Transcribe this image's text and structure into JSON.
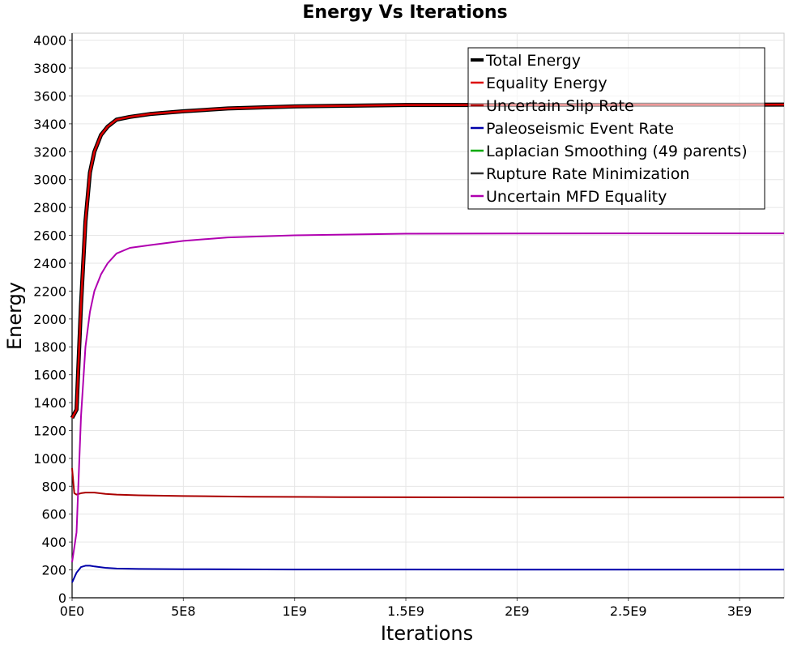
{
  "chart_data": {
    "type": "line",
    "title": "Energy Vs Iterations",
    "xlabel": "Iterations",
    "ylabel": "Energy",
    "xlim": [
      0,
      3200000000
    ],
    "ylim": [
      0,
      4050
    ],
    "x_ticks": [
      0,
      500000000,
      1000000000,
      1500000000,
      2000000000,
      2500000000,
      3000000000
    ],
    "x_tick_labels": [
      "0E0",
      "5E8",
      "1E9",
      "1.5E9",
      "2E9",
      "2.5E9",
      "3E9"
    ],
    "y_ticks": [
      0,
      200,
      400,
      600,
      800,
      1000,
      1200,
      1400,
      1600,
      1800,
      2000,
      2200,
      2400,
      2600,
      2800,
      3000,
      3200,
      3400,
      3600,
      3800,
      4000
    ],
    "grid": true,
    "legend_position": "top-right",
    "series": [
      {
        "name": "Total Energy",
        "color": "#000000",
        "x": [
          0,
          20000000,
          40000000,
          60000000,
          80000000,
          100000000,
          130000000,
          160000000,
          200000000,
          260000000,
          350000000,
          500000000,
          700000000,
          1000000000,
          1500000000,
          2000000000,
          2500000000,
          3000000000,
          3200000000
        ],
        "y": [
          1290,
          1350,
          2100,
          2700,
          3050,
          3200,
          3320,
          3380,
          3430,
          3450,
          3470,
          3490,
          3510,
          3525,
          3535,
          3535,
          3537,
          3537,
          3538
        ]
      },
      {
        "name": "Equality Energy",
        "color": "#dd0000",
        "x": [
          0,
          20000000,
          40000000,
          60000000,
          80000000,
          100000000,
          130000000,
          160000000,
          200000000,
          260000000,
          350000000,
          500000000,
          700000000,
          1000000000,
          1500000000,
          2000000000,
          2500000000,
          3000000000,
          3200000000
        ],
        "y": [
          1290,
          1350,
          2100,
          2700,
          3050,
          3200,
          3320,
          3380,
          3430,
          3450,
          3470,
          3490,
          3510,
          3525,
          3535,
          3535,
          3537,
          3537,
          3538
        ]
      },
      {
        "name": "Uncertain Slip Rate",
        "color": "#aa0000",
        "x": [
          0,
          10000000,
          20000000,
          40000000,
          60000000,
          100000000,
          150000000,
          200000000,
          300000000,
          500000000,
          800000000,
          1200000000,
          2000000000,
          3200000000
        ],
        "y": [
          930,
          750,
          740,
          750,
          755,
          755,
          745,
          740,
          735,
          730,
          725,
          722,
          720,
          720
        ]
      },
      {
        "name": "Paleoseismic Event Rate",
        "color": "#0000aa",
        "x": [
          0,
          20000000,
          40000000,
          60000000,
          80000000,
          100000000,
          150000000,
          200000000,
          300000000,
          500000000,
          1000000000,
          2000000000,
          3200000000
        ],
        "y": [
          110,
          180,
          220,
          230,
          230,
          225,
          215,
          210,
          207,
          205,
          203,
          202,
          202
        ]
      },
      {
        "name": "Laplacian Smoothing (49 parents)",
        "color": "#00aa00",
        "x": [],
        "y": []
      },
      {
        "name": "Rupture Rate Minimization",
        "color": "#333333",
        "x": [],
        "y": []
      },
      {
        "name": "Uncertain MFD Equality",
        "color": "#b000b0",
        "x": [
          0,
          20000000,
          40000000,
          60000000,
          80000000,
          100000000,
          130000000,
          160000000,
          200000000,
          260000000,
          350000000,
          500000000,
          700000000,
          1000000000,
          1500000000,
          2000000000,
          2500000000,
          3000000000,
          3200000000
        ],
        "y": [
          255,
          470,
          1300,
          1800,
          2050,
          2200,
          2320,
          2400,
          2470,
          2510,
          2530,
          2560,
          2585,
          2600,
          2612,
          2613,
          2614,
          2614,
          2614
        ]
      }
    ]
  }
}
